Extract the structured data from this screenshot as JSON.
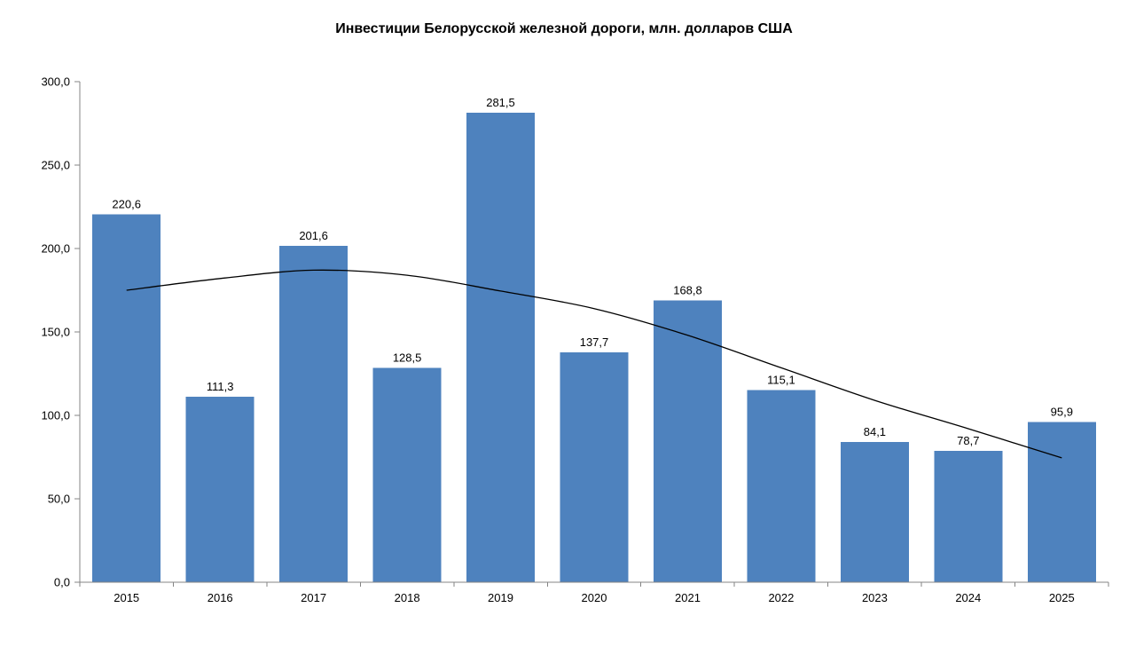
{
  "chart_data": {
    "type": "bar",
    "title": "Инвестиции Белорусской железной дороги, млн. долларов США",
    "categories": [
      "2015",
      "2016",
      "2017",
      "2018",
      "2019",
      "2020",
      "2021",
      "2022",
      "2023",
      "2024",
      "2025"
    ],
    "values": [
      220.6,
      111.3,
      201.6,
      128.5,
      281.5,
      137.7,
      168.8,
      115.1,
      84.1,
      78.7,
      95.9
    ],
    "value_labels": [
      "220,6",
      "111,3",
      "201,6",
      "128,5",
      "281,5",
      "137,7",
      "168,8",
      "115,1",
      "84,1",
      "78,7",
      "95,9"
    ],
    "xlabel": "",
    "ylabel": "",
    "ylim": [
      0,
      300
    ],
    "y_tick_step": 50,
    "y_tick_labels": [
      "0,0",
      "50,0",
      "100,0",
      "150,0",
      "200,0",
      "250,0",
      "300,0"
    ],
    "grid": false,
    "legend": false,
    "bar_color": "#4E82BE",
    "axis_color": "#848484",
    "text_color": "#000000",
    "trendline": {
      "type": "polynomial",
      "color": "#000000",
      "values_at_categories": [
        175,
        182,
        187,
        184,
        174.5,
        164,
        148,
        128.5,
        109,
        92,
        74.5
      ]
    }
  }
}
